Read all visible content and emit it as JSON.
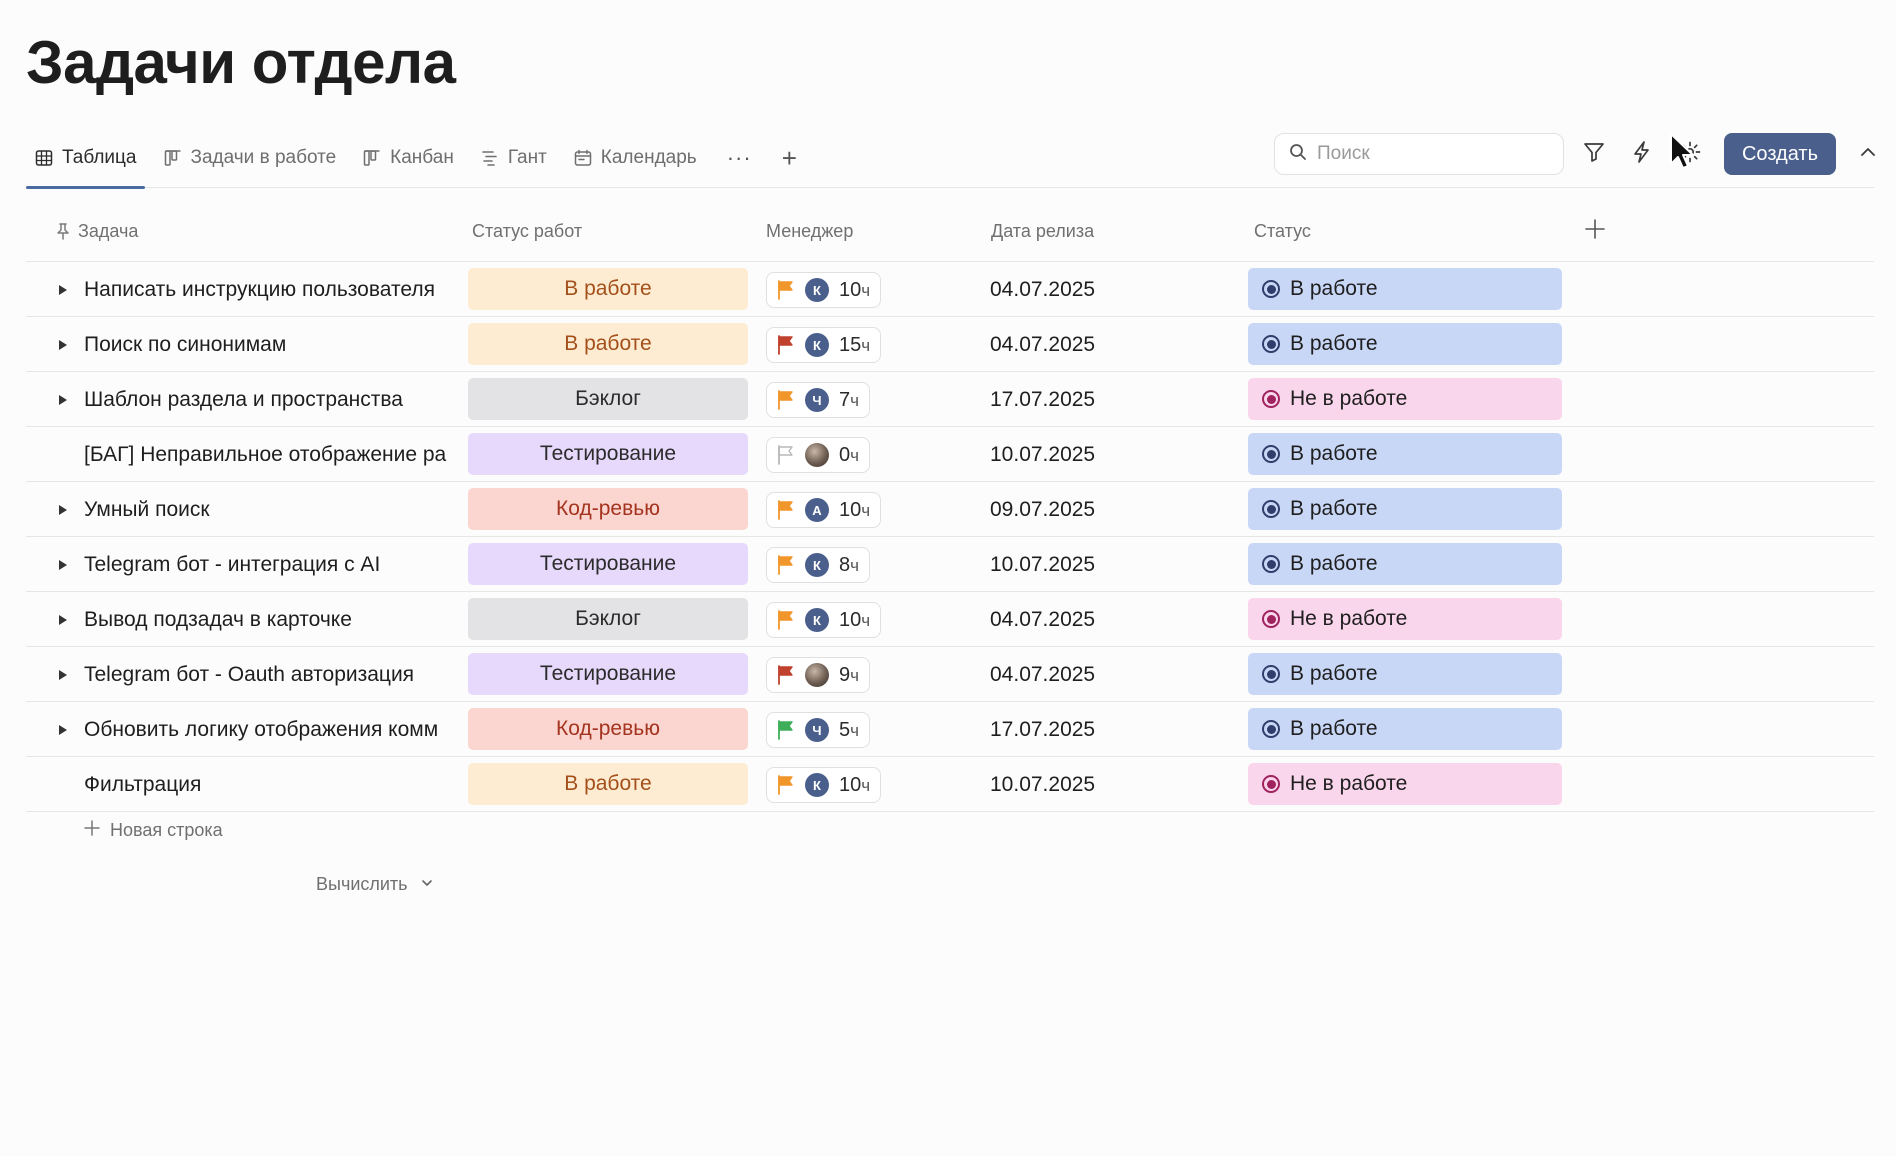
{
  "page": {
    "title": "Задачи отдела"
  },
  "tabs": [
    {
      "label": "Таблица",
      "icon": "table-icon",
      "active": true
    },
    {
      "label": "Задачи в работе",
      "icon": "board-icon",
      "active": false
    },
    {
      "label": "Канбан",
      "icon": "board-icon",
      "active": false
    },
    {
      "label": "Гант",
      "icon": "gantt-icon",
      "active": false
    },
    {
      "label": "Календарь",
      "icon": "calendar-icon",
      "active": false
    }
  ],
  "tabs_more": "···",
  "tabs_add": "+",
  "search": {
    "placeholder": "Поиск",
    "value": ""
  },
  "toolbar": {
    "create_label": "Создать"
  },
  "columns": {
    "task": "Задача",
    "work_status": "Статус работ",
    "manager": "Менеджер",
    "release_date": "Дата релиза",
    "status": "Статус",
    "add_column": "+"
  },
  "hours_unit": "ч",
  "rows": [
    {
      "task": "Написать инструкцию пользователя",
      "expandable": true,
      "work_status": "В работе",
      "work_kind": "work",
      "flag": "orange",
      "avatar": "К",
      "avatar_photo": false,
      "hours": "10",
      "date": "04.07.2025",
      "status": "В работе",
      "status_kind": "on"
    },
    {
      "task": "Поиск по синонимам",
      "expandable": true,
      "work_status": "В работе",
      "work_kind": "work",
      "flag": "red",
      "avatar": "К",
      "avatar_photo": false,
      "hours": "15",
      "date": "04.07.2025",
      "status": "В работе",
      "status_kind": "on"
    },
    {
      "task": "Шаблон раздела и пространства",
      "expandable": true,
      "work_status": "Бэклог",
      "work_kind": "backlog",
      "flag": "orange",
      "avatar": "Ч",
      "avatar_photo": false,
      "hours": "7",
      "date": "17.07.2025",
      "status": "Не в работе",
      "status_kind": "off"
    },
    {
      "task": "[БАГ] Неправильное отображение ра",
      "expandable": false,
      "work_status": "Тестирование",
      "work_kind": "testing",
      "flag": "empty",
      "avatar": "",
      "avatar_photo": true,
      "hours": "0",
      "date": "10.07.2025",
      "status": "В работе",
      "status_kind": "on"
    },
    {
      "task": "Умный поиск",
      "expandable": true,
      "work_status": "Код-ревью",
      "work_kind": "review",
      "flag": "orange",
      "avatar": "А",
      "avatar_photo": false,
      "hours": "10",
      "date": "09.07.2025",
      "status": "В работе",
      "status_kind": "on"
    },
    {
      "task": "Telegram бот - интеграция с AI",
      "expandable": true,
      "work_status": "Тестирование",
      "work_kind": "testing",
      "flag": "orange",
      "avatar": "К",
      "avatar_photo": false,
      "hours": "8",
      "date": "10.07.2025",
      "status": "В работе",
      "status_kind": "on"
    },
    {
      "task": "Вывод подзадач в карточке",
      "expandable": true,
      "work_status": "Бэклог",
      "work_kind": "backlog",
      "flag": "orange",
      "avatar": "К",
      "avatar_photo": false,
      "hours": "10",
      "date": "04.07.2025",
      "status": "Не в работе",
      "status_kind": "off"
    },
    {
      "task": "Telegram бот - Oauth авторизация",
      "expandable": true,
      "work_status": "Тестирование",
      "work_kind": "testing",
      "flag": "red",
      "avatar": "",
      "avatar_photo": true,
      "hours": "9",
      "date": "04.07.2025",
      "status": "В работе",
      "status_kind": "on"
    },
    {
      "task": "Обновить логику отображения комм",
      "expandable": true,
      "work_status": "Код-ревью",
      "work_kind": "review",
      "flag": "green",
      "avatar": "Ч",
      "avatar_photo": false,
      "hours": "5",
      "date": "17.07.2025",
      "status": "В работе",
      "status_kind": "on"
    },
    {
      "task": "Фильтрация",
      "expandable": false,
      "work_status": "В работе",
      "work_kind": "work",
      "flag": "orange",
      "avatar": "К",
      "avatar_photo": false,
      "hours": "10",
      "date": "10.07.2025",
      "status": "Не в работе",
      "status_kind": "off"
    }
  ],
  "footer": {
    "new_row": "Новая строка",
    "calculate": "Вычислить"
  },
  "colors": {
    "accent": "#4a5f8c",
    "work": {
      "bg": "#fdecd2",
      "fg": "#a4501a"
    },
    "backlog": {
      "bg": "#e3e3e5",
      "fg": "#2b2b2b"
    },
    "testing": {
      "bg": "#e6d9fb",
      "fg": "#2b2b2b"
    },
    "review": {
      "bg": "#fbd5cf",
      "fg": "#a4341f"
    },
    "status_on": {
      "bg": "#c9d7f6",
      "fg": "#1e1e1e",
      "dot": "#2f3e6b"
    },
    "status_off": {
      "bg": "#fad6ec",
      "fg": "#1e1e1e",
      "dot": "#a0225f"
    },
    "flags": {
      "orange": "#f0962b",
      "red": "#c0412e",
      "green": "#3fae5a",
      "empty": "#b8b8b8"
    }
  }
}
